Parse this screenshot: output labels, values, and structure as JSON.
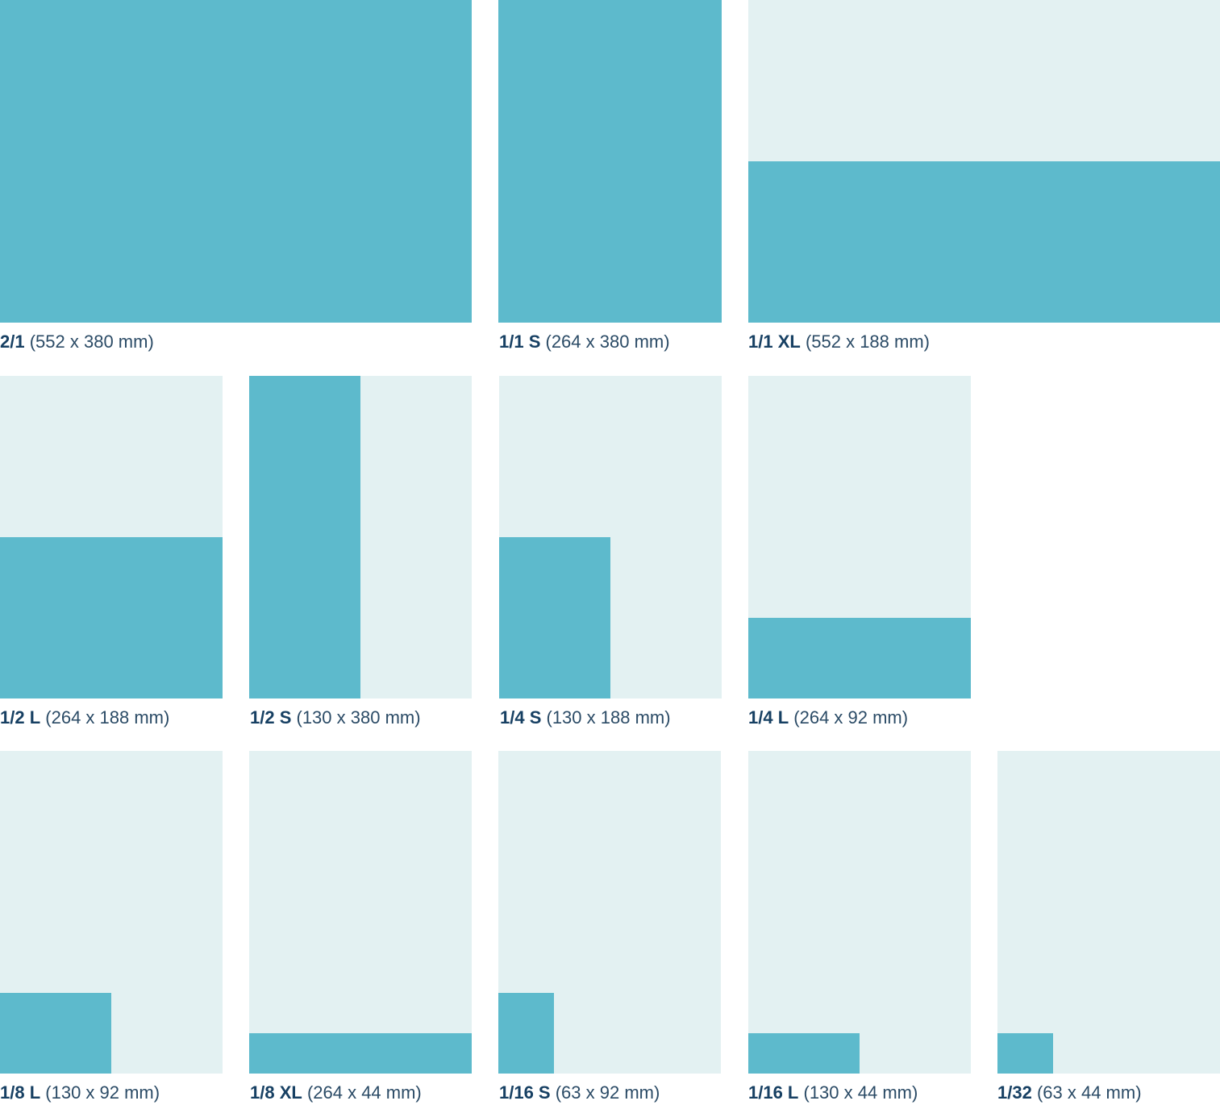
{
  "colors": {
    "page_background": "#e3f1f2",
    "ad_fill": "#5dbacc",
    "label_text": "#174063"
  },
  "formats": [
    {
      "code": "2/1",
      "size": "(552 x 380 mm)",
      "width_fraction": 1,
      "height_fraction": 1
    },
    {
      "code": "1/1 S",
      "size": "(264 x 380 mm)",
      "width_fraction": 1,
      "height_fraction": 1
    },
    {
      "code": "1/1 XL",
      "size": "(552 x 188 mm)",
      "width_fraction": 1,
      "height_fraction": 0.5
    },
    {
      "code": "1/2 L",
      "size": "(264 x 188 mm)",
      "width_fraction": 1,
      "height_fraction": 0.5
    },
    {
      "code": "1/2 S",
      "size": "(130 x 380 mm)",
      "width_fraction": 0.5,
      "height_fraction": 1
    },
    {
      "code": "1/4 S",
      "size": "(130 x 188 mm)",
      "width_fraction": 0.5,
      "height_fraction": 0.5
    },
    {
      "code": "1/4 L",
      "size": "(264 x 92 mm)",
      "width_fraction": 1,
      "height_fraction": 0.25
    },
    {
      "code": "1/8 L",
      "size": "(130 x 92 mm)",
      "width_fraction": 0.5,
      "height_fraction": 0.25
    },
    {
      "code": "1/8 XL",
      "size": "(264 x 44 mm)",
      "width_fraction": 1,
      "height_fraction": 0.125
    },
    {
      "code": "1/16 S",
      "size": "(63 x 92 mm)",
      "width_fraction": 0.25,
      "height_fraction": 0.25
    },
    {
      "code": "1/16 L",
      "size": "(130 x 44 mm)",
      "width_fraction": 0.5,
      "height_fraction": 0.125
    },
    {
      "code": "1/32",
      "size": "(63 x 44 mm)",
      "width_fraction": 0.25,
      "height_fraction": 0.125
    }
  ]
}
